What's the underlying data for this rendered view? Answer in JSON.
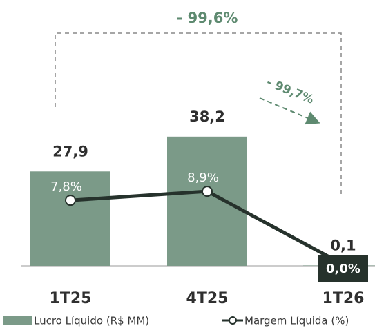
{
  "chart_data": {
    "type": "bar",
    "categories": [
      "1T25",
      "4T25",
      "1T26"
    ],
    "series": [
      {
        "name": "Lucro Líquido (R$ MM)",
        "type": "bar",
        "color": "#7b9a88",
        "values": [
          27.9,
          38.2,
          0.1
        ],
        "value_labels": [
          "27,9",
          "38,2",
          "0,1"
        ]
      },
      {
        "name": "Margem Líquida (%)",
        "type": "line",
        "color": "#26322c",
        "values": [
          7.8,
          8.9,
          0.0
        ],
        "value_labels": [
          "7,8%",
          "8,9%",
          "0,0%"
        ]
      }
    ],
    "annotations": [
      "- 99,6%",
      "- 99,7%"
    ],
    "annotation_color": "#5e8a70"
  }
}
